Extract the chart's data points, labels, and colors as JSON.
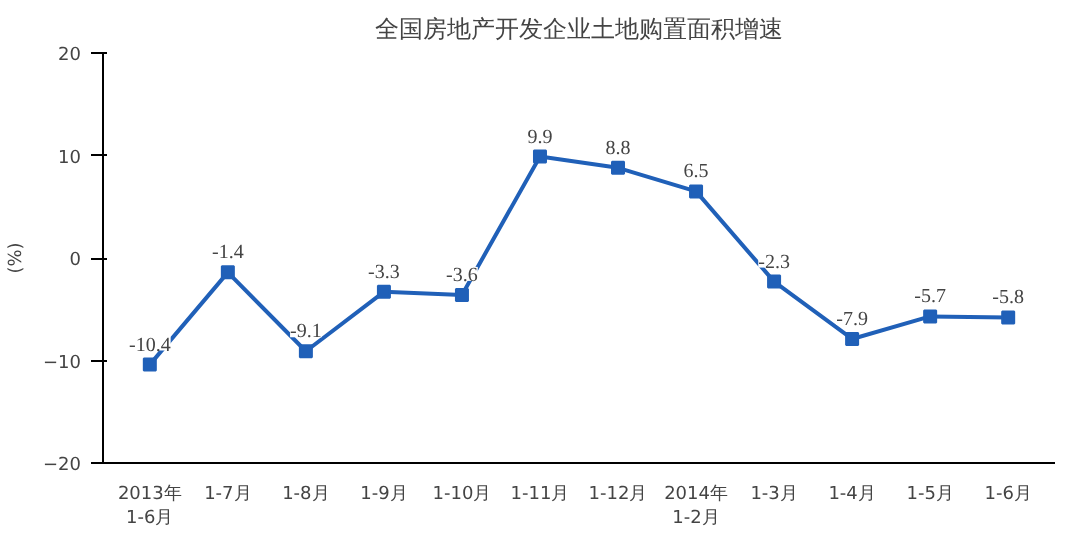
{
  "chart_data": {
    "type": "line",
    "title": "全国房地产开发企业土地购置面积增速",
    "ylabel": "(%)",
    "categories": [
      "2013年\n1-6月",
      "1-7月",
      "1-8月",
      "1-9月",
      "1-10月",
      "1-11月",
      "1-12月",
      "2014年\n1-2月",
      "1-3月",
      "1-4月",
      "1-5月",
      "1-6月"
    ],
    "series": [
      {
        "color": "#2060b8",
        "values": [
          -10.4,
          -1.4,
          -9.1,
          -3.3,
          -3.6,
          9.9,
          8.8,
          6.5,
          -2.3,
          -7.9,
          -5.7,
          -5.8
        ]
      }
    ],
    "ylim": [
      -20,
      20
    ],
    "yticks": [
      -20,
      -10,
      0,
      10,
      20
    ],
    "grid": false,
    "marker": "square",
    "data_labels": true
  }
}
